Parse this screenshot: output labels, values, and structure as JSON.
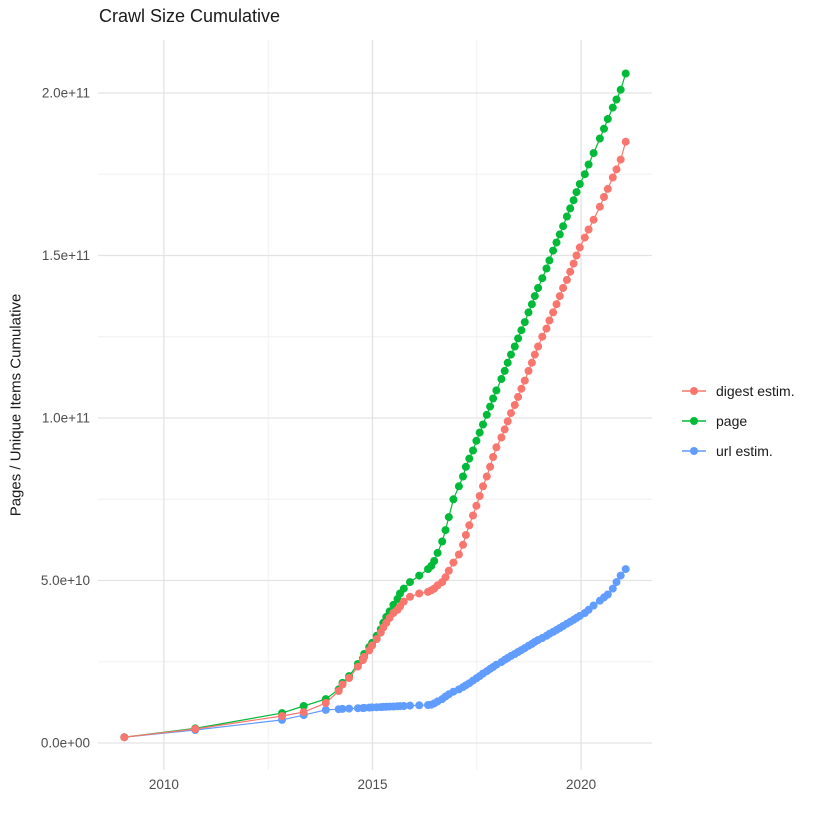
{
  "chart_data": {
    "type": "scatter",
    "title": "Crawl Size Cumulative",
    "xlabel": "",
    "ylabel": "Pages / Unique Items Cumulative",
    "value_unit": "billions (1e9); y tick labels shown in scientific notation",
    "xlim": [
      2008.42,
      2021.7
    ],
    "ylim": [
      -8.3,
      216.3
    ],
    "grid": true,
    "legend_position": "right",
    "x_tick_values": [
      2010,
      2015,
      2020
    ],
    "x_tick_labels": [
      "2010",
      "2015",
      "2020"
    ],
    "x_minor_ticks": [
      2012.5,
      2017.5
    ],
    "y_tick_values": [
      0,
      50,
      100,
      150,
      200
    ],
    "y_tick_labels": [
      "0.0e+00",
      "5.0e+10",
      "1.0e+11",
      "1.5e+11",
      "2.0e+11"
    ],
    "y_minor_ticks": [
      25,
      75,
      125,
      175
    ],
    "x": [
      2009.05,
      2010.75,
      2012.83,
      2013.35,
      2013.88,
      2014.19,
      2014.28,
      2014.44,
      2014.65,
      2014.77,
      2014.8,
      2014.92,
      2014.99,
      2015.1,
      2015.2,
      2015.26,
      2015.33,
      2015.41,
      2015.5,
      2015.6,
      2015.66,
      2015.75,
      2015.9,
      2016.12,
      2016.33,
      2016.41,
      2016.48,
      2016.56,
      2016.67,
      2016.75,
      2016.83,
      2016.94,
      2017.07,
      2017.17,
      2017.24,
      2017.32,
      2017.41,
      2017.49,
      2017.57,
      2017.65,
      2017.74,
      2017.82,
      2017.89,
      2017.97,
      2018.09,
      2018.17,
      2018.24,
      2018.32,
      2018.41,
      2018.49,
      2018.57,
      2018.65,
      2018.74,
      2018.82,
      2018.89,
      2018.97,
      2019.07,
      2019.17,
      2019.24,
      2019.33,
      2019.41,
      2019.49,
      2019.57,
      2019.66,
      2019.74,
      2019.82,
      2019.89,
      2019.97,
      2020.09,
      2020.18,
      2020.3,
      2020.45,
      2020.55,
      2020.64,
      2020.76,
      2020.85,
      2020.95,
      2021.07
    ],
    "series": [
      {
        "name": "digest estim.",
        "color": "#F8766D",
        "values": [
          1.8,
          4.3,
          8.3,
          9.5,
          12.3,
          16.0,
          18.0,
          20.0,
          23.5,
          25.5,
          26.5,
          28.5,
          30.0,
          32.0,
          34.0,
          35.5,
          37.0,
          38.5,
          40.0,
          41.0,
          42.0,
          43.5,
          45.0,
          46.0,
          46.5,
          47.0,
          47.5,
          48.5,
          49.5,
          51.0,
          53.0,
          55.5,
          58.0,
          61.0,
          64.0,
          67.0,
          70.0,
          73.0,
          76.0,
          79.0,
          82.0,
          85.0,
          88.0,
          91.0,
          94.0,
          96.5,
          99.0,
          101.5,
          104.0,
          106.5,
          109.0,
          111.5,
          114.5,
          117.0,
          119.5,
          122.0,
          125.0,
          127.5,
          130.0,
          132.5,
          135.0,
          137.5,
          140.0,
          142.5,
          145.0,
          147.5,
          150.0,
          152.5,
          155.5,
          158.0,
          161.0,
          165.0,
          168.0,
          170.5,
          174.0,
          176.5,
          179.5,
          185.0
        ]
      },
      {
        "name": "page",
        "color": "#00BA38",
        "values": [
          1.8,
          4.5,
          9.2,
          11.4,
          13.5,
          16.5,
          18.5,
          20.6,
          24.3,
          26.0,
          27.4,
          29.5,
          30.8,
          33.0,
          35.0,
          37.0,
          38.8,
          40.5,
          42.5,
          44.3,
          46.0,
          47.5,
          49.5,
          51.5,
          53.5,
          54.5,
          56.0,
          58.5,
          62.0,
          65.5,
          69.5,
          75.0,
          79.0,
          82.0,
          85.0,
          87.5,
          90.0,
          93.0,
          95.5,
          98.0,
          101.0,
          103.5,
          106.0,
          108.5,
          112.0,
          114.5,
          117.0,
          119.5,
          122.0,
          124.5,
          127.0,
          129.5,
          132.5,
          135.0,
          137.5,
          140.0,
          143.0,
          146.0,
          148.5,
          151.5,
          154.0,
          156.5,
          159.0,
          162.0,
          164.5,
          167.0,
          169.5,
          172.0,
          175.0,
          178.0,
          181.5,
          186.0,
          189.0,
          192.0,
          195.5,
          198.0,
          201.0,
          206.0
        ]
      },
      {
        "name": "url estim.",
        "color": "#619CFF",
        "values": [
          1.8,
          4.0,
          7.1,
          8.6,
          10.2,
          10.4,
          10.5,
          10.6,
          10.7,
          10.75,
          10.8,
          10.9,
          10.95,
          11.0,
          11.05,
          11.1,
          11.15,
          11.2,
          11.25,
          11.3,
          11.35,
          11.4,
          11.5,
          11.6,
          11.7,
          11.8,
          12.2,
          12.8,
          13.5,
          14.3,
          15.0,
          15.8,
          16.5,
          17.2,
          17.8,
          18.4,
          19.2,
          19.9,
          20.6,
          21.4,
          22.1,
          22.8,
          23.4,
          24.1,
          24.9,
          25.6,
          26.2,
          26.8,
          27.4,
          28.0,
          28.6,
          29.2,
          29.9,
          30.5,
          31.1,
          31.7,
          32.3,
          33.0,
          33.6,
          34.2,
          34.8,
          35.4,
          36.0,
          36.7,
          37.3,
          37.9,
          38.5,
          39.1,
          40.0,
          41.0,
          42.3,
          43.8,
          44.8,
          45.7,
          47.5,
          49.5,
          51.5,
          53.5
        ]
      }
    ],
    "draw_order": [
      "url estim.",
      "page",
      "digest estim."
    ],
    "legend": {
      "entries": [
        "digest estim.",
        "page",
        "url estim."
      ],
      "marker": "point-on-line"
    },
    "style": {
      "grid_major_color": "#E3E3E3",
      "grid_minor_color": "#EFEFEF",
      "axis_text_color": "#4D4D4D",
      "title_color": "#1a1a1a",
      "point_radius": 4,
      "line_width": 1.2
    }
  }
}
